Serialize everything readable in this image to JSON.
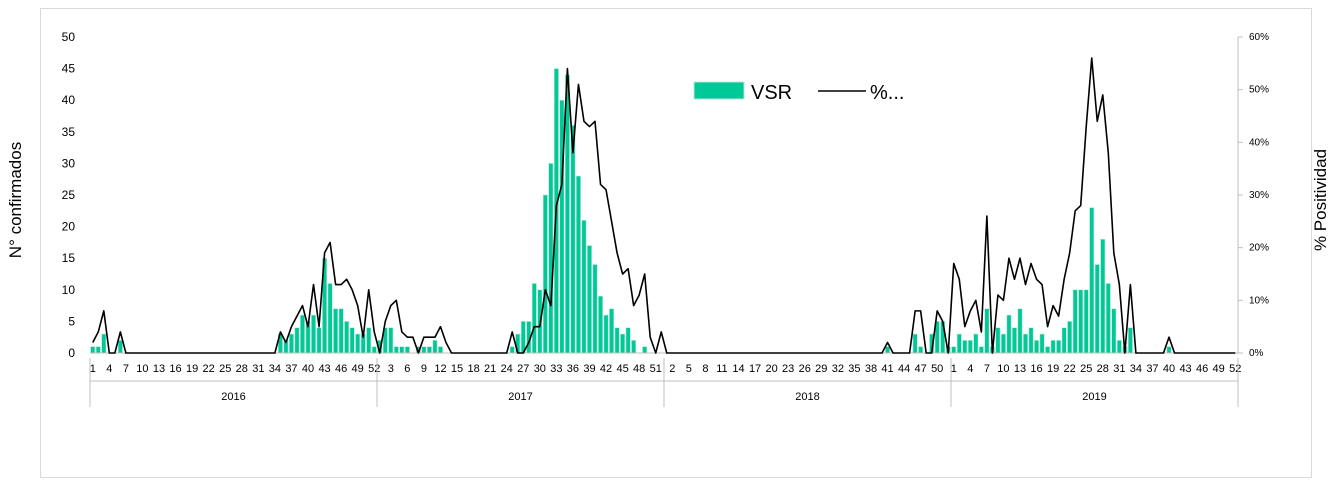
{
  "chart_data": {
    "type": "bar",
    "xlabel": "",
    "ylabel": "N° confirmados",
    "y2label": "% Positividad",
    "ylim": [
      0,
      50
    ],
    "y_ticks": [
      0,
      5,
      10,
      15,
      20,
      25,
      30,
      35,
      40,
      45,
      50
    ],
    "y2lim": [
      0,
      60
    ],
    "y2_ticks": [
      "0%",
      "10%",
      "20%",
      "30%",
      "40%",
      "50%",
      "60%"
    ],
    "grid": false,
    "legend": {
      "placement": "top-center",
      "entries": [
        "VSR",
        "%..."
      ]
    },
    "colors": {
      "bar_fill": "#00c897",
      "bar_edge": "#b7e8d9",
      "line": "#000000",
      "axis": "#bfbfbf"
    },
    "years": [
      {
        "label": "2016",
        "weeks": 52,
        "ticks": [
          "1",
          "4",
          "7",
          "10",
          "13",
          "16",
          "19",
          "22",
          "25",
          "28",
          "31",
          "34",
          "37",
          "40",
          "43",
          "46",
          "49",
          "52"
        ]
      },
      {
        "label": "2017",
        "weeks": 52,
        "ticks": [
          "3",
          "6",
          "9",
          "12",
          "15",
          "18",
          "21",
          "24",
          "27",
          "30",
          "33",
          "36",
          "39",
          "42",
          "45",
          "48",
          "51"
        ]
      },
      {
        "label": "2018",
        "weeks": 52,
        "ticks": [
          "2",
          "5",
          "8",
          "11",
          "14",
          "17",
          "20",
          "23",
          "26",
          "29",
          "32",
          "35",
          "38",
          "41",
          "44",
          "47",
          "50"
        ]
      },
      {
        "label": "2019",
        "weeks": 52,
        "ticks": [
          "1",
          "4",
          "7",
          "10",
          "13",
          "16",
          "19",
          "22",
          "25",
          "28",
          "31",
          "34",
          "37",
          "40",
          "43",
          "46",
          "49",
          "52"
        ]
      }
    ],
    "series": [
      {
        "name": "VSR",
        "type": "bar",
        "values": [
          1,
          1,
          3,
          0,
          0,
          2,
          0,
          0,
          0,
          0,
          0,
          0,
          0,
          0,
          0,
          0,
          0,
          0,
          0,
          0,
          0,
          0,
          0,
          0,
          0,
          0,
          0,
          0,
          0,
          0,
          0,
          0,
          0,
          0,
          3,
          2,
          3,
          4,
          6,
          5,
          6,
          4,
          15,
          11,
          7,
          7,
          5,
          4,
          3,
          3,
          4,
          1,
          2,
          4,
          4,
          1,
          1,
          1,
          0,
          1,
          1,
          1,
          2,
          1,
          0,
          0,
          0,
          0,
          0,
          0,
          0,
          0,
          0,
          0,
          0,
          0,
          1,
          3,
          5,
          5,
          11,
          10,
          25,
          30,
          45,
          40,
          44,
          36,
          28,
          21,
          17,
          14,
          9,
          6,
          7,
          4,
          3,
          4,
          2,
          0,
          1,
          0,
          0,
          0,
          0,
          0,
          0,
          0,
          0,
          0,
          0,
          0,
          0,
          0,
          0,
          0,
          0,
          0,
          0,
          0,
          0,
          0,
          0,
          0,
          0,
          0,
          0,
          0,
          0,
          0,
          0,
          0,
          0,
          0,
          0,
          0,
          0,
          0,
          0,
          0,
          0,
          0,
          0,
          0,
          1,
          0,
          0,
          0,
          0,
          3,
          1,
          0,
          3,
          5,
          5,
          1,
          1,
          3,
          2,
          2,
          3,
          1,
          7,
          1,
          4,
          3,
          6,
          4,
          7,
          3,
          4,
          2,
          3,
          1,
          2,
          2,
          4,
          5,
          10,
          10,
          10,
          23,
          14,
          18,
          11,
          7,
          2,
          1,
          4,
          0,
          0,
          0,
          0,
          0,
          0,
          1,
          0,
          0,
          0,
          0,
          0,
          0,
          0,
          0,
          0,
          0,
          0,
          0
        ]
      },
      {
        "name": "%...",
        "type": "line",
        "axis": "y2",
        "values": [
          2,
          4,
          8,
          0,
          0,
          4,
          0,
          0,
          0,
          0,
          0,
          0,
          0,
          0,
          0,
          0,
          0,
          0,
          0,
          0,
          0,
          0,
          0,
          0,
          0,
          0,
          0,
          0,
          0,
          0,
          0,
          0,
          0,
          0,
          4,
          2,
          5,
          7,
          9,
          5,
          13,
          5,
          19,
          21,
          13,
          13,
          14,
          12,
          9,
          3,
          12,
          4,
          0,
          6,
          9,
          10,
          4,
          3,
          3,
          0,
          3,
          3,
          3,
          5,
          2,
          0,
          0,
          0,
          0,
          0,
          0,
          0,
          0,
          0,
          0,
          0,
          4,
          0,
          0,
          2,
          5,
          5,
          12,
          9,
          28,
          32,
          54,
          38,
          51,
          44,
          43,
          44,
          32,
          31,
          25,
          19,
          15,
          16,
          9,
          11,
          15,
          3,
          0,
          4,
          0,
          0,
          0,
          0,
          0,
          0,
          0,
          0,
          0,
          0,
          0,
          0,
          0,
          0,
          0,
          0,
          0,
          0,
          0,
          0,
          0,
          0,
          0,
          0,
          0,
          0,
          0,
          0,
          0,
          0,
          0,
          0,
          0,
          0,
          0,
          0,
          0,
          0,
          0,
          0,
          2,
          0,
          0,
          0,
          0,
          8,
          8,
          0,
          0,
          8,
          6,
          0,
          17,
          14,
          5,
          8,
          10,
          4,
          26,
          0,
          11,
          10,
          18,
          14,
          18,
          13,
          17,
          14,
          13,
          5,
          9,
          7,
          14,
          19,
          27,
          28,
          43,
          56,
          44,
          49,
          38,
          19,
          13,
          0,
          13,
          0,
          0,
          0,
          0,
          0,
          0,
          3,
          0,
          0,
          0,
          0,
          0,
          0,
          0,
          0,
          0,
          0,
          0,
          0
        ]
      }
    ]
  }
}
